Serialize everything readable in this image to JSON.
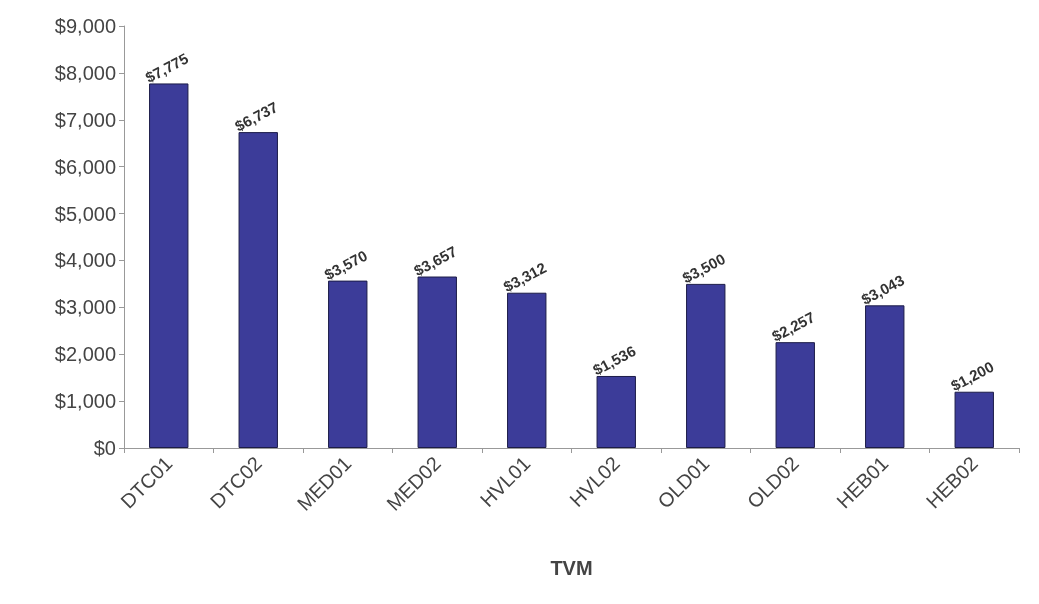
{
  "chart_data": {
    "type": "bar",
    "xlabel": "TVM",
    "categories": [
      "DTC01",
      "DTC02",
      "MED01",
      "MED02",
      "HVL01",
      "HVL02",
      "OLD01",
      "OLD02",
      "HEB01",
      "HEB02"
    ],
    "values": [
      7775,
      6737,
      3570,
      3657,
      3312,
      1536,
      3500,
      2257,
      3043,
      1200
    ],
    "value_labels": [
      "$7,775",
      "$6,737",
      "$3,570",
      "$3,657",
      "$3,312",
      "$1,536",
      "$3,500",
      "$2,257",
      "$3,043",
      "$1,200"
    ],
    "color": "#3c3c99",
    "ylim": [
      0,
      9000
    ],
    "yticks": [
      {
        "value": 0,
        "label": "$0"
      },
      {
        "value": 1000,
        "label": "$1,000"
      },
      {
        "value": 2000,
        "label": "$2,000"
      },
      {
        "value": 3000,
        "label": "$3,000"
      },
      {
        "value": 4000,
        "label": "$4,000"
      },
      {
        "value": 5000,
        "label": "$5,000"
      },
      {
        "value": 6000,
        "label": "$6,000"
      },
      {
        "value": 7000,
        "label": "$7,000"
      },
      {
        "value": 8000,
        "label": "$8,000"
      },
      {
        "value": 9000,
        "label": "$9,000"
      }
    ],
    "grid": false
  }
}
